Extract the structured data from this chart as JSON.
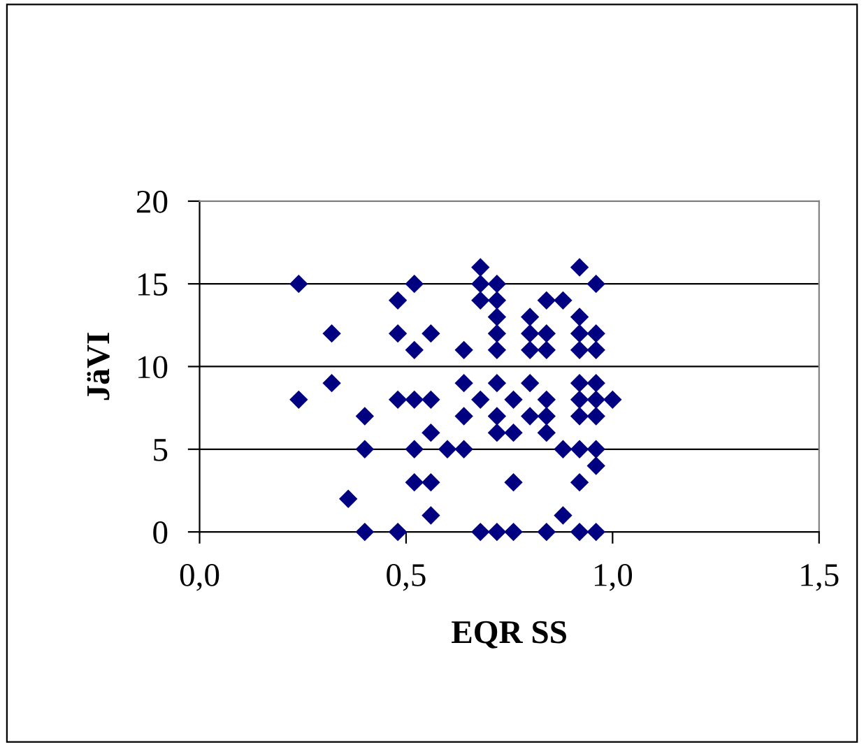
{
  "chart_data": {
    "type": "scatter",
    "xlabel": "EQR SS",
    "ylabel": "JäVI",
    "marker": "diamond",
    "grid": "y",
    "xlim": [
      0,
      1.5
    ],
    "ylim": [
      0,
      20
    ],
    "xticks": [
      {
        "value": 0,
        "label": "0,0"
      },
      {
        "value": 0.5,
        "label": "0,5"
      },
      {
        "value": 1.0,
        "label": "1,0"
      },
      {
        "value": 1.5,
        "label": "1,5"
      }
    ],
    "yticks": [
      0,
      5,
      10,
      15,
      20
    ],
    "series": [
      {
        "color": "#000080",
        "x": [
          0.24,
          0.24,
          0.32,
          0.32,
          0.36,
          0.4,
          0.4,
          0.4,
          0.48,
          0.48,
          0.48,
          0.48,
          0.52,
          0.52,
          0.52,
          0.52,
          0.52,
          0.56,
          0.56,
          0.56,
          0.56,
          0.56,
          0.6,
          0.64,
          0.64,
          0.64,
          0.64,
          0.68,
          0.68,
          0.68,
          0.68,
          0.68,
          0.72,
          0.72,
          0.72,
          0.72,
          0.72,
          0.72,
          0.72,
          0.72,
          0.72,
          0.76,
          0.76,
          0.76,
          0.76,
          0.8,
          0.8,
          0.8,
          0.8,
          0.8,
          0.84,
          0.84,
          0.84,
          0.84,
          0.84,
          0.84,
          0.84,
          0.88,
          0.88,
          0.88,
          0.92,
          0.92,
          0.92,
          0.92,
          0.92,
          0.92,
          0.92,
          0.92,
          0.92,
          0.92,
          0.96,
          0.96,
          0.96,
          0.96,
          0.96,
          0.96,
          0.96,
          0.96,
          0.96,
          1.0
        ],
        "values": [
          15,
          8,
          12,
          9,
          2,
          7,
          5,
          0,
          14,
          12,
          8,
          0,
          15,
          11,
          8,
          5,
          3,
          12,
          8,
          6,
          3,
          1,
          5,
          11,
          9,
          7,
          5,
          16,
          15,
          14,
          8,
          0,
          15,
          14,
          13,
          12,
          11,
          9,
          7,
          6,
          0,
          8,
          6,
          3,
          0,
          13,
          12,
          11,
          9,
          7,
          14,
          12,
          11,
          8,
          7,
          6,
          0,
          14,
          5,
          1,
          16,
          13,
          12,
          11,
          9,
          8,
          7,
          5,
          3,
          0,
          15,
          12,
          11,
          9,
          8,
          7,
          5,
          4,
          0,
          8
        ]
      }
    ]
  }
}
